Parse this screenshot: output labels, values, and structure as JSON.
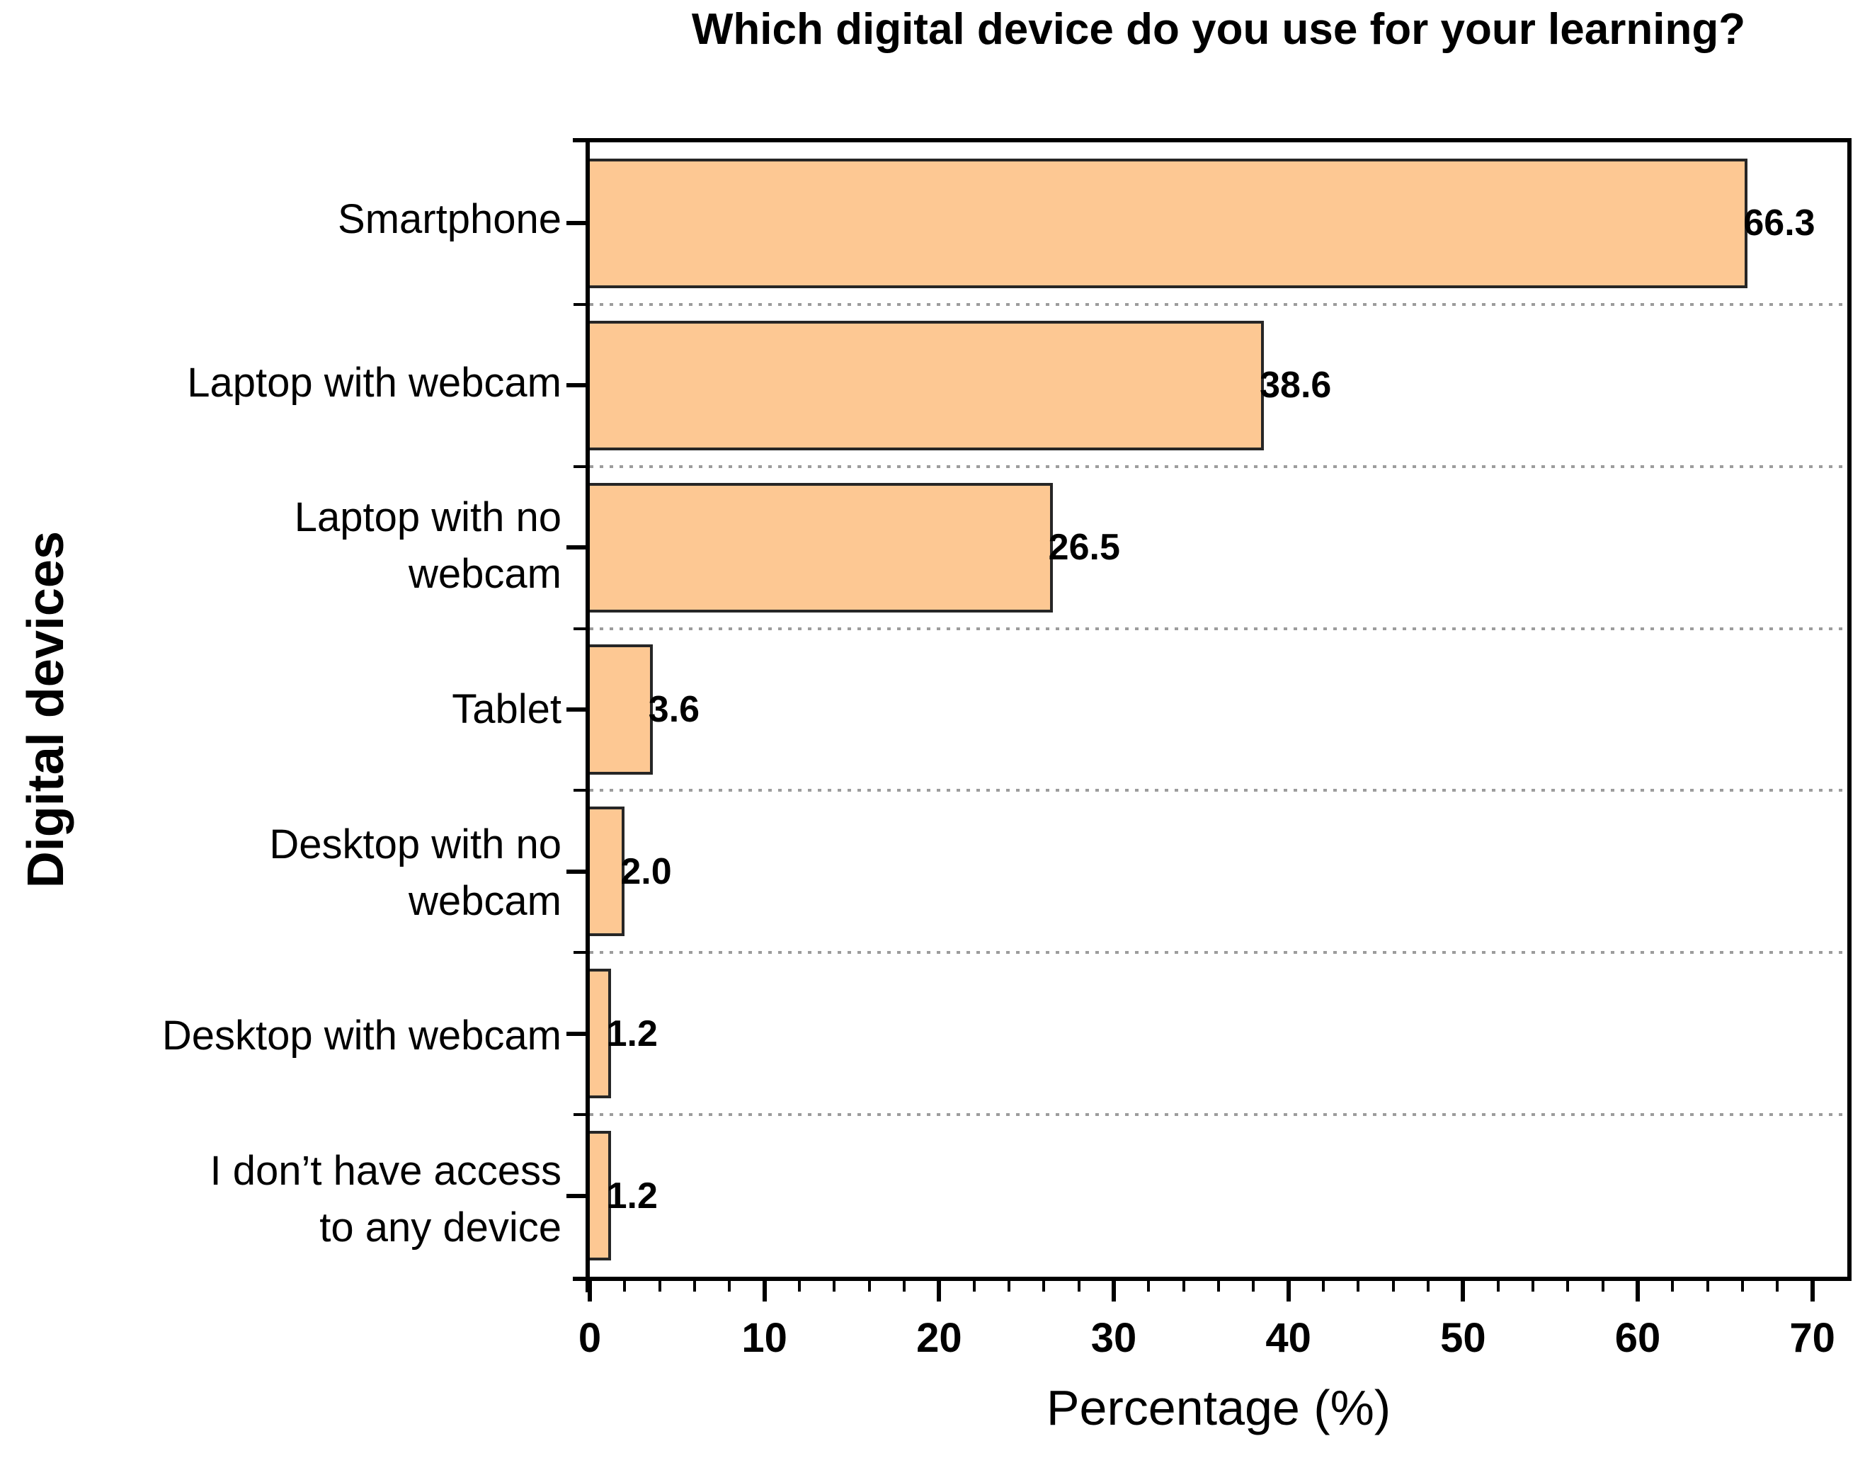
{
  "chart_data": {
    "type": "bar",
    "orientation": "horizontal",
    "title": "Which digital device do you use for your learning?",
    "xlabel": "Percentage (%)",
    "ylabel": "Digital devices",
    "categories": [
      "Smartphone",
      "Laptop with webcam",
      "Laptop with no\nwebcam",
      "Tablet",
      "Desktop with no\nwebcam",
      "Desktop with webcam",
      "I don’t have access\nto any device"
    ],
    "values": [
      66.3,
      38.6,
      26.5,
      3.6,
      2.0,
      1.2,
      1.2
    ],
    "value_labels": [
      "66.3",
      "38.6",
      "26.5",
      "3.6",
      "2.0",
      "1.2",
      "1.2"
    ],
    "xlim": [
      0,
      72
    ],
    "x_major_ticks": [
      0,
      10,
      20,
      30,
      40,
      50,
      60,
      70
    ],
    "x_minor_tick_step": 2,
    "gridlines": "dotted horizontal lines at category boundaries",
    "legend": "none",
    "bar_height_fraction": 0.8,
    "colors": {
      "background": "#ffffff",
      "bar_fill": "#FDC893",
      "bar_border": "#262626",
      "axis": "#000000",
      "gridline": "#9c9c9c",
      "text": "#000000"
    }
  }
}
